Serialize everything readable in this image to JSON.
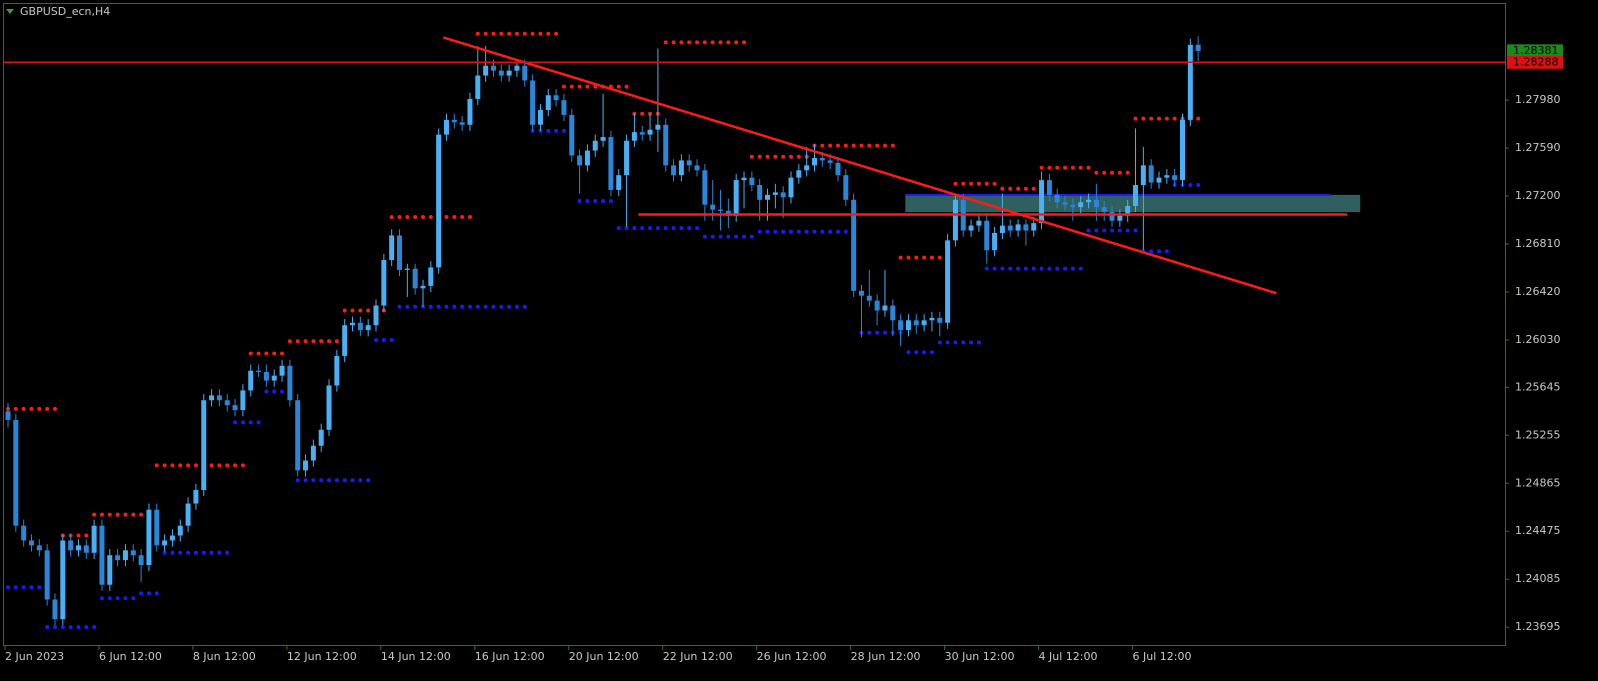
{
  "chart_data": {
    "type": "candlestick",
    "title": "GBPUSD_ecn,H4",
    "ylim": [
      1.2355,
      1.2877
    ],
    "yticks": [
      {
        "value": 1.2798,
        "label": "1.27980"
      },
      {
        "value": 1.2759,
        "label": "1.27590"
      },
      {
        "value": 1.272,
        "label": "1.27200"
      },
      {
        "value": 1.2681,
        "label": "1.26810"
      },
      {
        "value": 1.2642,
        "label": "1.26420"
      },
      {
        "value": 1.2603,
        "label": "1.26030"
      },
      1.25645,
      1.25255,
      1.24865,
      1.24475,
      1.24085,
      1.23695
    ],
    "price_labels": [
      {
        "value": 1.28381,
        "color": "#1a8a1a"
      },
      {
        "value": 1.28288,
        "color": "#e01010"
      }
    ],
    "up_color": "#4ab0f5",
    "down_color": "#2a86d8",
    "categories": [
      "2 Jun 2023",
      null,
      null,
      null,
      null,
      null,
      null,
      null,
      null,
      null,
      null,
      null,
      "6 Jun 12:00",
      null,
      null,
      null,
      null,
      null,
      null,
      null,
      null,
      null,
      null,
      null,
      "8 Jun 12:00",
      null,
      null,
      null,
      null,
      null,
      null,
      null,
      null,
      null,
      null,
      null,
      "12 Jun 12:00",
      null,
      null,
      null,
      null,
      null,
      null,
      null,
      null,
      null,
      null,
      null,
      "14 Jun 12:00",
      null,
      null,
      null,
      null,
      null,
      null,
      null,
      null,
      null,
      null,
      null,
      "16 Jun 12:00",
      null,
      null,
      null,
      null,
      null,
      null,
      null,
      null,
      null,
      null,
      null,
      "20 Jun 12:00",
      null,
      null,
      null,
      null,
      null,
      null,
      null,
      null,
      null,
      null,
      null,
      "22 Jun 12:00",
      null,
      null,
      null,
      null,
      null,
      null,
      null,
      null,
      null,
      null,
      null,
      "26 Jun 12:00",
      null,
      null,
      null,
      null,
      null,
      null,
      null,
      null,
      null,
      null,
      null,
      "28 Jun 12:00",
      null,
      null,
      null,
      null,
      null,
      null,
      null,
      null,
      null,
      null,
      null,
      "30 Jun 12:00",
      null,
      null,
      null,
      null,
      null,
      null,
      null,
      null,
      null,
      null,
      null,
      "4 Jul 12:00",
      null,
      null,
      null,
      null,
      null,
      null,
      null,
      null,
      null,
      null,
      null,
      "6 Jul 12:00",
      null,
      null,
      null,
      null,
      null,
      null,
      null,
      null
    ],
    "candles": [
      [
        1.2545,
        1.2552,
        1.2532,
        1.2538
      ],
      [
        1.2538,
        1.2543,
        1.2447,
        1.2452
      ],
      [
        1.2452,
        1.2457,
        1.2435,
        1.244
      ],
      [
        1.244,
        1.2445,
        1.2431,
        1.2436
      ],
      [
        1.2436,
        1.2441,
        1.2427,
        1.2432
      ],
      [
        1.2432,
        1.2437,
        1.2387,
        1.2392
      ],
      [
        1.2392,
        1.2397,
        1.2371,
        1.2376
      ],
      [
        1.2376,
        1.2445,
        1.2371,
        1.244
      ],
      [
        1.244,
        1.2445,
        1.2427,
        1.2432
      ],
      [
        1.2432,
        1.2441,
        1.2427,
        1.2436
      ],
      [
        1.2436,
        1.2441,
        1.2425,
        1.243
      ],
      [
        1.243,
        1.2457,
        1.2425,
        1.2452
      ],
      [
        1.2452,
        1.2457,
        1.2399,
        1.2404
      ],
      [
        1.2404,
        1.2433,
        1.2399,
        1.2428
      ],
      [
        1.2428,
        1.2433,
        1.2419,
        1.2424
      ],
      [
        1.2424,
        1.2437,
        1.2419,
        1.2432
      ],
      [
        1.2432,
        1.2437,
        1.2423,
        1.2428
      ],
      [
        1.2428,
        1.2433,
        1.2406,
        1.242
      ],
      [
        1.242,
        1.247,
        1.2415,
        1.2465
      ],
      [
        1.2465,
        1.247,
        1.2431,
        1.2436
      ],
      [
        1.2436,
        1.2445,
        1.2431,
        1.244
      ],
      [
        1.244,
        1.2449,
        1.2435,
        1.2444
      ],
      [
        1.2444,
        1.2457,
        1.2439,
        1.2452
      ],
      [
        1.2452,
        1.2475,
        1.2447,
        1.247
      ],
      [
        1.247,
        1.2486,
        1.2465,
        1.2481
      ],
      [
        1.2481,
        1.2559,
        1.2476,
        1.2554
      ],
      [
        1.2554,
        1.2563,
        1.2549,
        1.2558
      ],
      [
        1.2558,
        1.2563,
        1.2549,
        1.2554
      ],
      [
        1.2554,
        1.2559,
        1.2545,
        1.255
      ],
      [
        1.255,
        1.2555,
        1.2541,
        1.2546
      ],
      [
        1.2546,
        1.2567,
        1.2541,
        1.2562
      ],
      [
        1.2562,
        1.2583,
        1.2557,
        1.2578
      ],
      [
        1.2578,
        1.2583,
        1.2573,
        1.2577
      ],
      [
        1.2577,
        1.2583,
        1.2565,
        1.257
      ],
      [
        1.257,
        1.2579,
        1.2565,
        1.2574
      ],
      [
        1.2574,
        1.2587,
        1.2569,
        1.2582
      ],
      [
        1.2582,
        1.2587,
        1.2549,
        1.2554
      ],
      [
        1.2554,
        1.2559,
        1.2492,
        1.2497
      ],
      [
        1.2497,
        1.251,
        1.2492,
        1.2505
      ],
      [
        1.2505,
        1.2522,
        1.25,
        1.2517
      ],
      [
        1.2517,
        1.2535,
        1.2512,
        1.253
      ],
      [
        1.253,
        1.2571,
        1.2525,
        1.2566
      ],
      [
        1.2566,
        1.2595,
        1.2561,
        1.259
      ],
      [
        1.259,
        1.262,
        1.2585,
        1.2615
      ],
      [
        1.2615,
        1.2622,
        1.261,
        1.2617
      ],
      [
        1.2617,
        1.2622,
        1.2606,
        1.2611
      ],
      [
        1.2611,
        1.262,
        1.2606,
        1.2615
      ],
      [
        1.2615,
        1.2636,
        1.261,
        1.2631
      ],
      [
        1.2631,
        1.2673,
        1.2626,
        1.2668
      ],
      [
        1.2668,
        1.2693,
        1.2663,
        1.2688
      ],
      [
        1.2688,
        1.2693,
        1.2655,
        1.266
      ],
      [
        1.266,
        1.2665,
        1.2638,
        1.2661
      ],
      [
        1.2661,
        1.2665,
        1.264,
        1.2645
      ],
      [
        1.2645,
        1.2652,
        1.263,
        1.2647
      ],
      [
        1.2647,
        1.2667,
        1.2642,
        1.2662
      ],
      [
        1.2662,
        1.2775,
        1.2657,
        1.277
      ],
      [
        1.277,
        1.2787,
        1.2765,
        1.2782
      ],
      [
        1.2782,
        1.2787,
        1.2775,
        1.278
      ],
      [
        1.278,
        1.2785,
        1.2773,
        1.2778
      ],
      [
        1.2778,
        1.2804,
        1.2773,
        1.2799
      ],
      [
        1.2799,
        1.2842,
        1.2794,
        1.2818
      ],
      [
        1.2818,
        1.2842,
        1.2813,
        1.2826
      ],
      [
        1.2826,
        1.2831,
        1.2817,
        1.2822
      ],
      [
        1.2822,
        1.2827,
        1.2813,
        1.2818
      ],
      [
        1.2818,
        1.2827,
        1.2813,
        1.2822
      ],
      [
        1.2822,
        1.2831,
        1.2817,
        1.2826
      ],
      [
        1.2826,
        1.2831,
        1.2809,
        1.2814
      ],
      [
        1.2814,
        1.2819,
        1.2773,
        1.2778
      ],
      [
        1.2778,
        1.2795,
        1.2773,
        1.279
      ],
      [
        1.279,
        1.2807,
        1.2785,
        1.2802
      ],
      [
        1.2802,
        1.2807,
        1.2793,
        1.2798
      ],
      [
        1.2798,
        1.2803,
        1.2781,
        1.2786
      ],
      [
        1.2786,
        1.2791,
        1.2748,
        1.2753
      ],
      [
        1.2753,
        1.2758,
        1.2722,
        1.2745
      ],
      [
        1.2745,
        1.2762,
        1.274,
        1.2757
      ],
      [
        1.2757,
        1.277,
        1.2752,
        1.2765
      ],
      [
        1.2765,
        1.2803,
        1.276,
        1.2768
      ],
      [
        1.2768,
        1.2773,
        1.272,
        1.2725
      ],
      [
        1.2725,
        1.2742,
        1.272,
        1.2737
      ],
      [
        1.2737,
        1.277,
        1.2695,
        1.2765
      ],
      [
        1.2765,
        1.2787,
        1.276,
        1.2772
      ],
      [
        1.2772,
        1.2777,
        1.2765,
        1.277
      ],
      [
        1.277,
        1.2787,
        1.2765,
        1.2774
      ],
      [
        1.2774,
        1.284,
        1.2756,
        1.2778
      ],
      [
        1.2778,
        1.2783,
        1.274,
        1.2745
      ],
      [
        1.2745,
        1.275,
        1.2732,
        1.2737
      ],
      [
        1.2737,
        1.2754,
        1.2732,
        1.2749
      ],
      [
        1.2749,
        1.2754,
        1.274,
        1.2745
      ],
      [
        1.2745,
        1.275,
        1.2736,
        1.2741
      ],
      [
        1.2741,
        1.2746,
        1.27,
        1.2713
      ],
      [
        1.2713,
        1.2733,
        1.27,
        1.2709
      ],
      [
        1.2709,
        1.2725,
        1.2692,
        1.2708
      ],
      [
        1.2708,
        1.2718,
        1.2694,
        1.2704
      ],
      [
        1.2704,
        1.2738,
        1.2699,
        1.2733
      ],
      [
        1.2733,
        1.274,
        1.271,
        1.2735
      ],
      [
        1.2735,
        1.274,
        1.2724,
        1.2729
      ],
      [
        1.2729,
        1.2734,
        1.27,
        1.2717
      ],
      [
        1.2717,
        1.2726,
        1.27,
        1.2721
      ],
      [
        1.2721,
        1.273,
        1.271,
        1.2723
      ],
      [
        1.2723,
        1.2728,
        1.2702,
        1.2719
      ],
      [
        1.2719,
        1.274,
        1.2714,
        1.2735
      ],
      [
        1.2735,
        1.2746,
        1.273,
        1.2741
      ],
      [
        1.2741,
        1.276,
        1.2736,
        1.2745
      ],
      [
        1.2745,
        1.2762,
        1.274,
        1.2751
      ],
      [
        1.2751,
        1.2756,
        1.2744,
        1.2749
      ],
      [
        1.2749,
        1.2754,
        1.2742,
        1.2747
      ],
      [
        1.2747,
        1.2752,
        1.2732,
        1.2737
      ],
      [
        1.2737,
        1.2742,
        1.2712,
        1.2717
      ],
      [
        1.2717,
        1.2722,
        1.2638,
        1.2643
      ],
      [
        1.2643,
        1.2648,
        1.2605,
        1.2639
      ],
      [
        1.2639,
        1.266,
        1.263,
        1.2635
      ],
      [
        1.2635,
        1.264,
        1.2615,
        1.2627
      ],
      [
        1.2627,
        1.266,
        1.2622,
        1.2631
      ],
      [
        1.2631,
        1.2636,
        1.2606,
        1.2619
      ],
      [
        1.2619,
        1.2624,
        1.2598,
        1.2611
      ],
      [
        1.2611,
        1.2624,
        1.2606,
        1.2619
      ],
      [
        1.2619,
        1.2624,
        1.2608,
        1.2615
      ],
      [
        1.2615,
        1.2624,
        1.261,
        1.2619
      ],
      [
        1.2619,
        1.2626,
        1.261,
        1.2621
      ],
      [
        1.2621,
        1.2626,
        1.2606,
        1.2617
      ],
      [
        1.2617,
        1.2689,
        1.2612,
        1.2684
      ],
      [
        1.2684,
        1.2722,
        1.2679,
        1.2717
      ],
      [
        1.2717,
        1.2722,
        1.2687,
        1.2692
      ],
      [
        1.2692,
        1.2701,
        1.2687,
        1.2696
      ],
      [
        1.2696,
        1.2705,
        1.2691,
        1.27
      ],
      [
        1.27,
        1.2705,
        1.2665,
        1.2676
      ],
      [
        1.2676,
        1.2695,
        1.2671,
        1.269
      ],
      [
        1.269,
        1.2722,
        1.2685,
        1.2696
      ],
      [
        1.2696,
        1.2701,
        1.2687,
        1.2692
      ],
      [
        1.2692,
        1.2701,
        1.2687,
        1.2697
      ],
      [
        1.2697,
        1.2701,
        1.268,
        1.2692
      ],
      [
        1.2692,
        1.2703,
        1.2687,
        1.2698
      ],
      [
        1.2698,
        1.274,
        1.2693,
        1.2733
      ],
      [
        1.2733,
        1.2738,
        1.2716,
        1.2721
      ],
      [
        1.2721,
        1.2726,
        1.271,
        1.2715
      ],
      [
        1.2715,
        1.272,
        1.2708,
        1.2713
      ],
      [
        1.2713,
        1.2718,
        1.27,
        1.2711
      ],
      [
        1.2711,
        1.272,
        1.2706,
        1.2715
      ],
      [
        1.2715,
        1.2722,
        1.271,
        1.2717
      ],
      [
        1.2717,
        1.273,
        1.27,
        1.2711
      ],
      [
        1.2711,
        1.2716,
        1.27,
        1.2707
      ],
      [
        1.2707,
        1.2712,
        1.2695,
        1.27
      ],
      [
        1.27,
        1.2709,
        1.2695,
        1.2704
      ],
      [
        1.2704,
        1.2717,
        1.2699,
        1.2712
      ],
      [
        1.2712,
        1.2775,
        1.2707,
        1.2729
      ],
      [
        1.2729,
        1.276,
        1.2676,
        1.2745
      ],
      [
        1.2745,
        1.275,
        1.2726,
        1.2731
      ],
      [
        1.2731,
        1.274,
        1.2726,
        1.2735
      ],
      [
        1.2735,
        1.2742,
        1.273,
        1.2737
      ],
      [
        1.2737,
        1.2742,
        1.2728,
        1.2733
      ],
      [
        1.2733,
        1.2787,
        1.2728,
        1.2782
      ],
      [
        1.2782,
        1.2848,
        1.2777,
        1.2843
      ],
      [
        1.2843,
        1.285,
        1.283,
        1.2838
      ]
    ],
    "resistance_levels": {
      "color": "#ff1a1a",
      "levels": [
        {
          "price": 1.2547,
          "from": 0,
          "to": 6
        },
        {
          "price": 1.2444,
          "from": 7,
          "to": 10
        },
        {
          "price": 1.2461,
          "from": 11,
          "to": 18
        },
        {
          "price": 1.2501,
          "from": 19,
          "to": 30
        },
        {
          "price": 1.2592,
          "from": 31,
          "to": 35
        },
        {
          "price": 1.2602,
          "from": 36,
          "to": 42
        },
        {
          "price": 1.2627,
          "from": 43,
          "to": 48
        },
        {
          "price": 1.2703,
          "from": 49,
          "to": 59
        },
        {
          "price": 1.2852,
          "from": 60,
          "to": 70
        },
        {
          "price": 1.2809,
          "from": 71,
          "to": 79
        },
        {
          "price": 1.2787,
          "from": 80,
          "to": 83
        },
        {
          "price": 1.2845,
          "from": 84,
          "to": 94
        },
        {
          "price": 1.2752,
          "from": 95,
          "to": 102
        },
        {
          "price": 1.2761,
          "from": 103,
          "to": 113
        },
        {
          "price": 1.267,
          "from": 114,
          "to": 120
        },
        {
          "price": 1.273,
          "from": 121,
          "to": 126
        },
        {
          "price": 1.2726,
          "from": 127,
          "to": 131
        },
        {
          "price": 1.2743,
          "from": 132,
          "to": 138
        },
        {
          "price": 1.2739,
          "from": 139,
          "to": 143
        },
        {
          "price": 1.2783,
          "from": 144,
          "to": 152
        }
      ]
    },
    "support_levels": {
      "color": "#1a1aff",
      "levels": [
        {
          "price": 1.2402,
          "from": 0,
          "to": 4
        },
        {
          "price": 1.23695,
          "from": 5,
          "to": 11
        },
        {
          "price": 1.2393,
          "from": 12,
          "to": 16
        },
        {
          "price": 1.2397,
          "from": 17,
          "to": 19
        },
        {
          "price": 1.243,
          "from": 20,
          "to": 28
        },
        {
          "price": 1.2536,
          "from": 29,
          "to": 32
        },
        {
          "price": 1.2561,
          "from": 33,
          "to": 36
        },
        {
          "price": 1.2489,
          "from": 37,
          "to": 46
        },
        {
          "price": 1.2603,
          "from": 47,
          "to": 49
        },
        {
          "price": 1.263,
          "from": 50,
          "to": 66
        },
        {
          "price": 1.2773,
          "from": 67,
          "to": 72
        },
        {
          "price": 1.2716,
          "from": 73,
          "to": 77
        },
        {
          "price": 1.2694,
          "from": 78,
          "to": 88
        },
        {
          "price": 1.2687,
          "from": 89,
          "to": 95
        },
        {
          "price": 1.2691,
          "from": 96,
          "to": 108
        },
        {
          "price": 1.2609,
          "from": 109,
          "to": 114
        },
        {
          "price": 1.2593,
          "from": 115,
          "to": 118
        },
        {
          "price": 1.2601,
          "from": 119,
          "to": 124
        },
        {
          "price": 1.2661,
          "from": 125,
          "to": 137
        },
        {
          "price": 1.2692,
          "from": 138,
          "to": 144
        },
        {
          "price": 1.2675,
          "from": 145,
          "to": 148
        },
        {
          "price": 1.2729,
          "from": 149,
          "to": 152
        }
      ]
    },
    "trendline": {
      "color": "#ff1a1a",
      "from": 55.6,
      "from_price": 1.2849,
      "to": 162,
      "to_price": 1.2641
    },
    "horizontal_line": {
      "color": "#ff1a1a",
      "from": 80.5,
      "to": 171,
      "price": 1.2705
    },
    "zone": {
      "color": "#2f5f5f",
      "from": 114.6,
      "to": 172.7,
      "top": 1.2721,
      "bottom": 1.2707,
      "edge_color": "#1a1aff"
    }
  }
}
